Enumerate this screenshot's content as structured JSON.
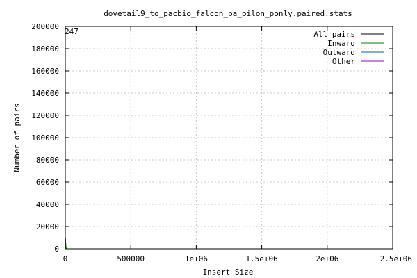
{
  "chart_data": {
    "type": "line",
    "title": "dovetail9_to_pacbio_falcon_pa_pilon_ponly.paired.stats",
    "xlabel": "Insert Size",
    "ylabel": "Number of pairs",
    "xlim": [
      0,
      2500000
    ],
    "ylim": [
      0,
      200000
    ],
    "x_ticks": [
      0,
      500000,
      1000000,
      1500000,
      2000000,
      2500000
    ],
    "x_tick_labels": [
      "0",
      "500000",
      "1e+06",
      "1.5e+06",
      "2e+06",
      "2.5e+06"
    ],
    "y_ticks": [
      0,
      20000,
      40000,
      60000,
      80000,
      100000,
      120000,
      140000,
      160000,
      180000,
      200000
    ],
    "y_tick_labels": [
      "0",
      "20000",
      "40000",
      "60000",
      "80000",
      "100000",
      "120000",
      "140000",
      "160000",
      "180000",
      "200000"
    ],
    "grid": true,
    "legend_position": "top-right",
    "annotation": "247",
    "series": [
      {
        "name": "All pairs",
        "color": "#000000",
        "x": [
          0,
          300,
          600,
          1000,
          5000,
          10000
        ],
        "y": [
          0,
          2000,
          6000,
          9500,
          1500,
          0
        ]
      },
      {
        "name": "Inward",
        "color": "#008000",
        "x": [
          0,
          300,
          600,
          1000,
          5000,
          10000
        ],
        "y": [
          0,
          2000,
          6000,
          9500,
          1500,
          0
        ]
      },
      {
        "name": "Outward",
        "color": "#0060ad",
        "x": [
          0,
          1000,
          10000
        ],
        "y": [
          0,
          0,
          0
        ]
      },
      {
        "name": "Other",
        "color": "#9400d3",
        "x": [
          0,
          1000,
          10000
        ],
        "y": [
          0,
          0,
          0
        ]
      }
    ]
  }
}
